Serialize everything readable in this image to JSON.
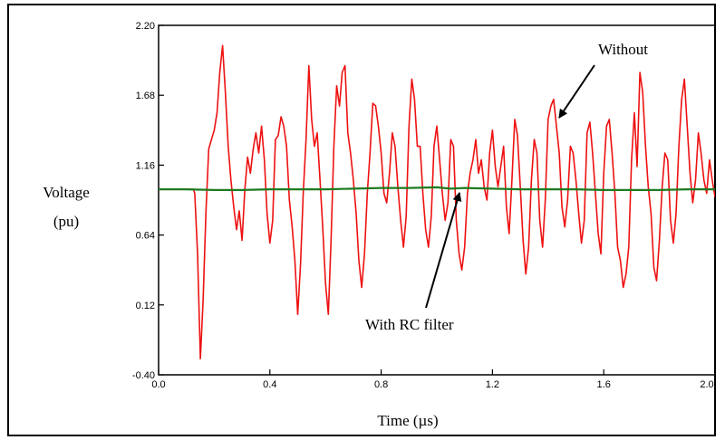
{
  "chart_data": {
    "type": "line",
    "xlabel": "Time (µs)",
    "ylabel_line1": "Voltage",
    "ylabel_line2": "(pu)",
    "xlim": [
      0.0,
      2.0
    ],
    "ylim": [
      -0.4,
      2.2
    ],
    "x_ticks": [
      "0.0",
      "0.4",
      "0.8",
      "1.2",
      "1.6",
      "2.0"
    ],
    "y_ticks": [
      "-0.40",
      "0.12",
      "0.64",
      "1.16",
      "1.68",
      "2.20"
    ],
    "annotations": [
      {
        "text": "Without"
      },
      {
        "text": "With RC filter"
      }
    ],
    "series": [
      {
        "color": "#ee1111",
        "points": [
          [
            0.0,
            0.98
          ],
          [
            0.125,
            0.98
          ],
          [
            0.13,
            0.95
          ],
          [
            0.14,
            0.5
          ],
          [
            0.15,
            -0.28
          ],
          [
            0.16,
            0.15
          ],
          [
            0.17,
            0.8
          ],
          [
            0.18,
            1.28
          ],
          [
            0.19,
            1.35
          ],
          [
            0.2,
            1.42
          ],
          [
            0.21,
            1.55
          ],
          [
            0.22,
            1.85
          ],
          [
            0.23,
            2.05
          ],
          [
            0.24,
            1.7
          ],
          [
            0.25,
            1.3
          ],
          [
            0.26,
            1.05
          ],
          [
            0.27,
            0.85
          ],
          [
            0.28,
            0.68
          ],
          [
            0.29,
            0.82
          ],
          [
            0.3,
            0.6
          ],
          [
            0.31,
            0.98
          ],
          [
            0.32,
            1.22
          ],
          [
            0.33,
            1.1
          ],
          [
            0.34,
            1.28
          ],
          [
            0.35,
            1.4
          ],
          [
            0.36,
            1.25
          ],
          [
            0.37,
            1.45
          ],
          [
            0.38,
            1.2
          ],
          [
            0.39,
            0.8
          ],
          [
            0.4,
            0.58
          ],
          [
            0.41,
            0.75
          ],
          [
            0.42,
            1.35
          ],
          [
            0.43,
            1.38
          ],
          [
            0.44,
            1.52
          ],
          [
            0.45,
            1.45
          ],
          [
            0.46,
            1.3
          ],
          [
            0.47,
            0.9
          ],
          [
            0.48,
            0.7
          ],
          [
            0.49,
            0.45
          ],
          [
            0.5,
            0.05
          ],
          [
            0.51,
            0.42
          ],
          [
            0.52,
            0.95
          ],
          [
            0.53,
            1.35
          ],
          [
            0.54,
            1.9
          ],
          [
            0.55,
            1.5
          ],
          [
            0.56,
            1.3
          ],
          [
            0.57,
            1.4
          ],
          [
            0.58,
            1.05
          ],
          [
            0.59,
            0.7
          ],
          [
            0.6,
            0.28
          ],
          [
            0.61,
            0.05
          ],
          [
            0.62,
            0.6
          ],
          [
            0.63,
            1.3
          ],
          [
            0.64,
            1.75
          ],
          [
            0.65,
            1.6
          ],
          [
            0.66,
            1.85
          ],
          [
            0.67,
            1.9
          ],
          [
            0.68,
            1.4
          ],
          [
            0.69,
            1.25
          ],
          [
            0.7,
            1.05
          ],
          [
            0.71,
            0.8
          ],
          [
            0.72,
            0.45
          ],
          [
            0.73,
            0.25
          ],
          [
            0.74,
            0.5
          ],
          [
            0.75,
            0.95
          ],
          [
            0.76,
            1.25
          ],
          [
            0.77,
            1.62
          ],
          [
            0.78,
            1.6
          ],
          [
            0.79,
            1.45
          ],
          [
            0.8,
            1.25
          ],
          [
            0.81,
            0.95
          ],
          [
            0.82,
            0.88
          ],
          [
            0.83,
            1.1
          ],
          [
            0.84,
            1.4
          ],
          [
            0.85,
            1.3
          ],
          [
            0.86,
            1.0
          ],
          [
            0.87,
            0.75
          ],
          [
            0.88,
            0.55
          ],
          [
            0.89,
            0.78
          ],
          [
            0.9,
            1.45
          ],
          [
            0.91,
            1.8
          ],
          [
            0.92,
            1.65
          ],
          [
            0.93,
            1.3
          ],
          [
            0.94,
            1.3
          ],
          [
            0.95,
            0.95
          ],
          [
            0.96,
            0.68
          ],
          [
            0.97,
            0.55
          ],
          [
            0.98,
            0.78
          ],
          [
            0.99,
            1.3
          ],
          [
            1.0,
            1.45
          ],
          [
            1.01,
            1.2
          ],
          [
            1.02,
            0.95
          ],
          [
            1.03,
            0.75
          ],
          [
            1.04,
            0.88
          ],
          [
            1.05,
            1.35
          ],
          [
            1.06,
            1.3
          ],
          [
            1.07,
            0.75
          ],
          [
            1.08,
            0.5
          ],
          [
            1.09,
            0.38
          ],
          [
            1.1,
            0.55
          ],
          [
            1.11,
            0.95
          ],
          [
            1.12,
            1.1
          ],
          [
            1.13,
            1.2
          ],
          [
            1.14,
            1.35
          ],
          [
            1.15,
            1.1
          ],
          [
            1.16,
            1.2
          ],
          [
            1.17,
            1.0
          ],
          [
            1.18,
            0.9
          ],
          [
            1.19,
            1.25
          ],
          [
            1.2,
            1.42
          ],
          [
            1.21,
            1.15
          ],
          [
            1.22,
            1.0
          ],
          [
            1.23,
            1.15
          ],
          [
            1.24,
            1.3
          ],
          [
            1.25,
            0.85
          ],
          [
            1.26,
            0.65
          ],
          [
            1.27,
            1.05
          ],
          [
            1.28,
            1.5
          ],
          [
            1.29,
            1.38
          ],
          [
            1.3,
            1.0
          ],
          [
            1.31,
            0.6
          ],
          [
            1.32,
            0.35
          ],
          [
            1.33,
            0.55
          ],
          [
            1.34,
            1.05
          ],
          [
            1.35,
            1.35
          ],
          [
            1.36,
            1.25
          ],
          [
            1.37,
            0.75
          ],
          [
            1.38,
            0.55
          ],
          [
            1.39,
            0.9
          ],
          [
            1.4,
            1.5
          ],
          [
            1.41,
            1.6
          ],
          [
            1.42,
            1.65
          ],
          [
            1.43,
            1.45
          ],
          [
            1.44,
            1.25
          ],
          [
            1.45,
            0.85
          ],
          [
            1.46,
            0.7
          ],
          [
            1.47,
            0.9
          ],
          [
            1.48,
            1.3
          ],
          [
            1.49,
            1.25
          ],
          [
            1.5,
            1.05
          ],
          [
            1.51,
            0.8
          ],
          [
            1.52,
            0.58
          ],
          [
            1.53,
            0.75
          ],
          [
            1.54,
            1.4
          ],
          [
            1.55,
            1.48
          ],
          [
            1.56,
            1.25
          ],
          [
            1.57,
            0.95
          ],
          [
            1.58,
            0.65
          ],
          [
            1.59,
            0.5
          ],
          [
            1.6,
            1.1
          ],
          [
            1.61,
            1.45
          ],
          [
            1.62,
            1.5
          ],
          [
            1.63,
            1.25
          ],
          [
            1.64,
            0.95
          ],
          [
            1.65,
            0.55
          ],
          [
            1.66,
            0.45
          ],
          [
            1.67,
            0.25
          ],
          [
            1.68,
            0.35
          ],
          [
            1.69,
            0.55
          ],
          [
            1.7,
            1.2
          ],
          [
            1.71,
            1.55
          ],
          [
            1.72,
            1.15
          ],
          [
            1.73,
            1.85
          ],
          [
            1.74,
            1.7
          ],
          [
            1.75,
            1.3
          ],
          [
            1.76,
            1.0
          ],
          [
            1.77,
            0.8
          ],
          [
            1.78,
            0.4
          ],
          [
            1.79,
            0.3
          ],
          [
            1.8,
            0.6
          ],
          [
            1.81,
            1.0
          ],
          [
            1.82,
            1.25
          ],
          [
            1.83,
            1.2
          ],
          [
            1.84,
            0.75
          ],
          [
            1.85,
            0.58
          ],
          [
            1.86,
            0.8
          ],
          [
            1.87,
            1.3
          ],
          [
            1.88,
            1.65
          ],
          [
            1.89,
            1.8
          ],
          [
            1.9,
            1.45
          ],
          [
            1.91,
            1.1
          ],
          [
            1.92,
            0.88
          ],
          [
            1.93,
            1.05
          ],
          [
            1.94,
            1.4
          ],
          [
            1.95,
            1.25
          ],
          [
            1.96,
            1.05
          ],
          [
            1.97,
            0.95
          ],
          [
            1.98,
            1.2
          ],
          [
            1.99,
            1.05
          ],
          [
            2.0,
            0.92
          ]
        ]
      },
      {
        "color": "#1e7a1e",
        "points": [
          [
            0.0,
            0.98
          ],
          [
            0.1,
            0.98
          ],
          [
            0.2,
            0.975
          ],
          [
            0.3,
            0.975
          ],
          [
            0.4,
            0.98
          ],
          [
            0.5,
            0.98
          ],
          [
            0.6,
            0.98
          ],
          [
            0.7,
            0.985
          ],
          [
            0.8,
            0.99
          ],
          [
            0.9,
            0.99
          ],
          [
            1.0,
            0.995
          ],
          [
            1.05,
            0.985
          ],
          [
            1.1,
            0.99
          ],
          [
            1.2,
            0.985
          ],
          [
            1.3,
            0.98
          ],
          [
            1.4,
            0.98
          ],
          [
            1.5,
            0.98
          ],
          [
            1.6,
            0.975
          ],
          [
            1.7,
            0.975
          ],
          [
            1.8,
            0.975
          ],
          [
            1.9,
            0.98
          ],
          [
            2.0,
            0.98
          ]
        ]
      }
    ]
  }
}
